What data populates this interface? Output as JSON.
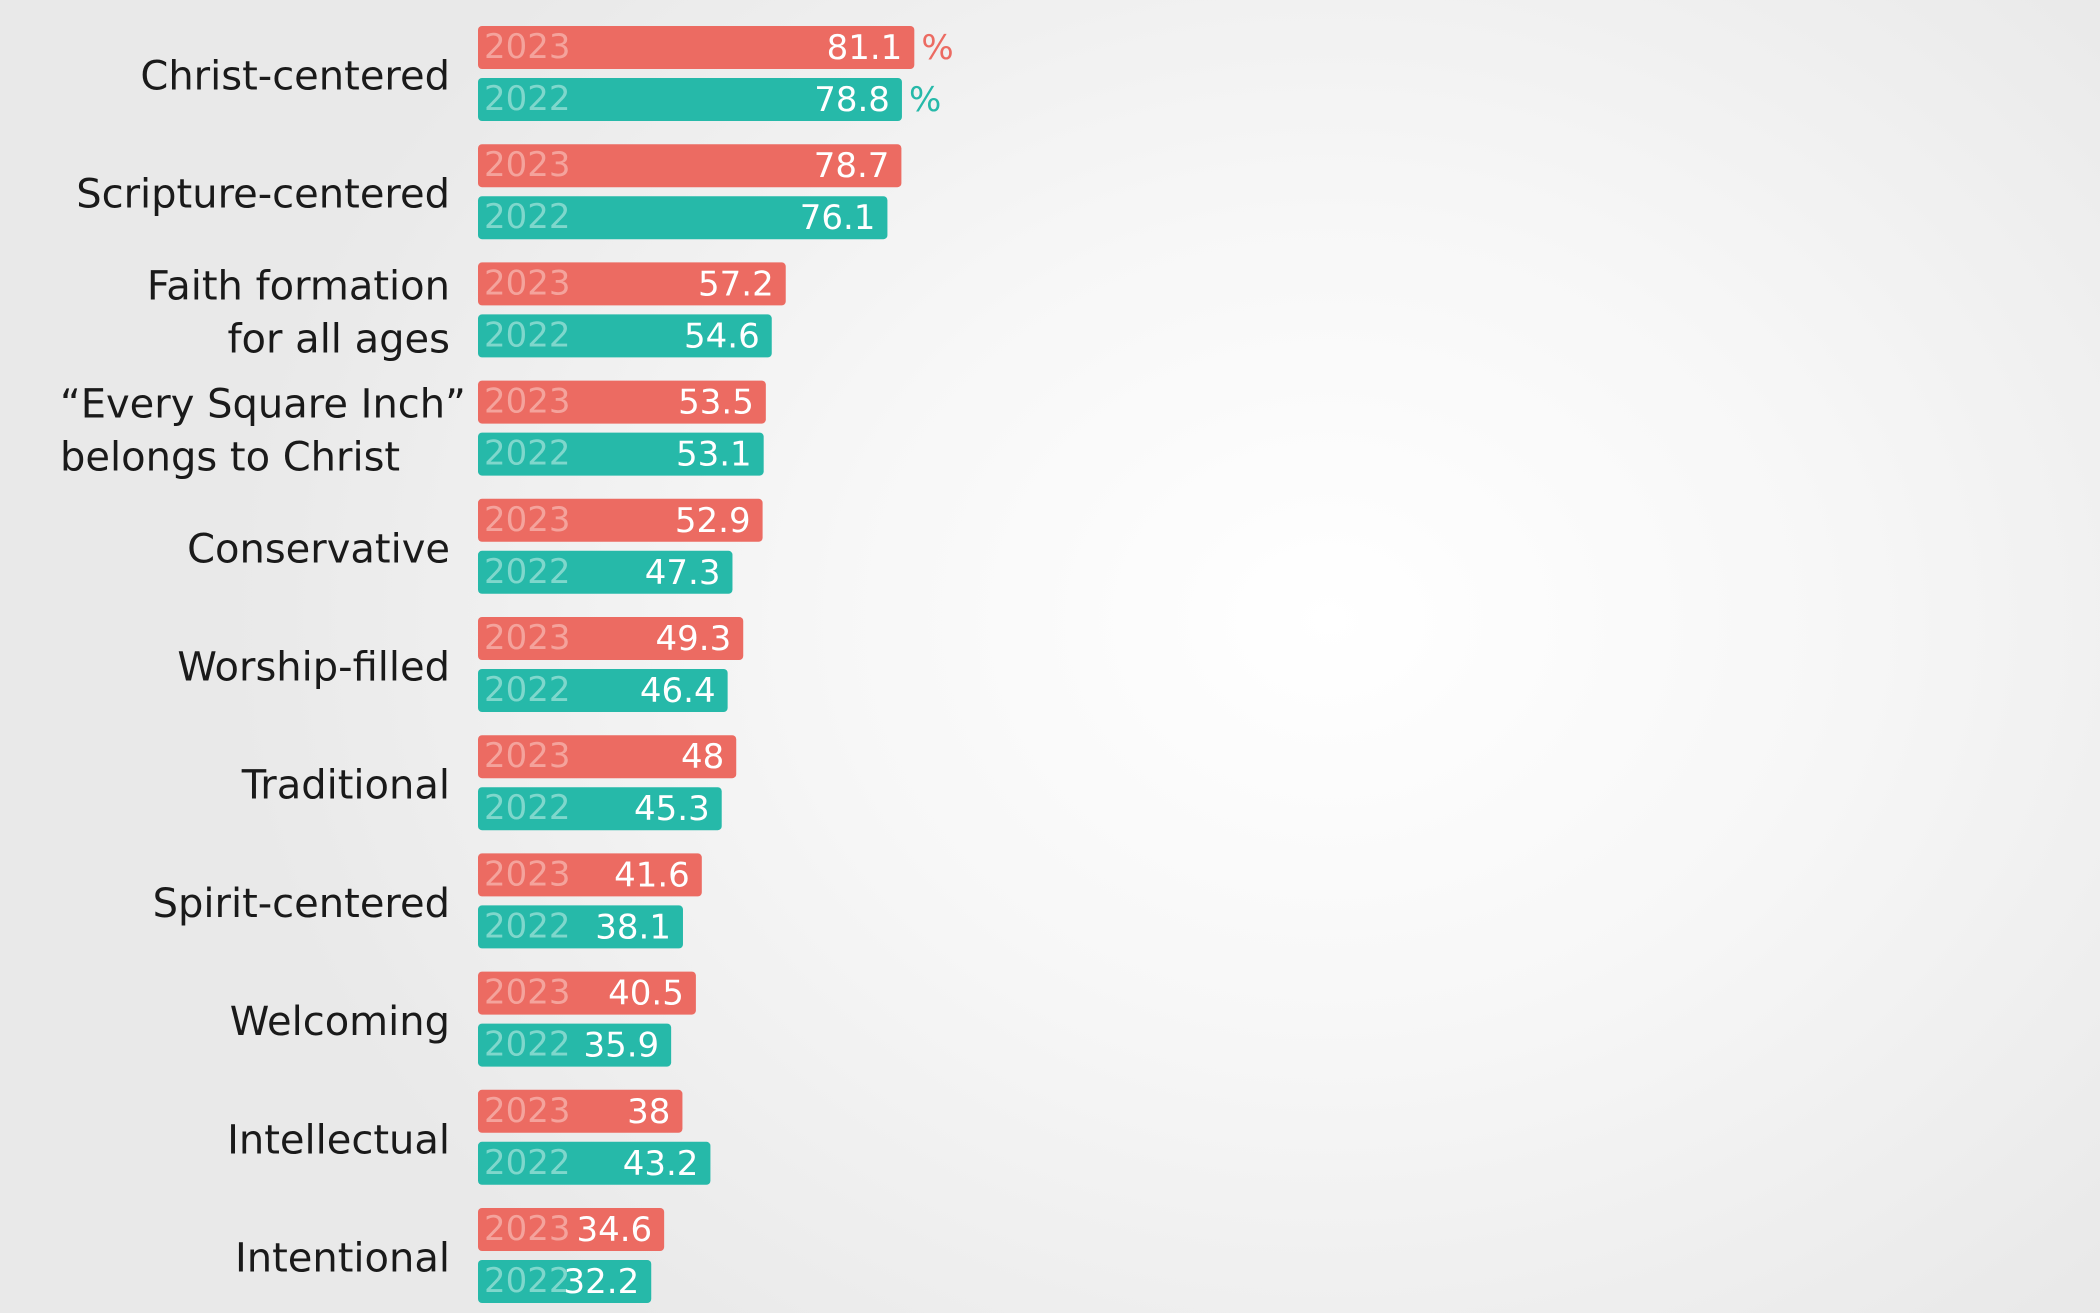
{
  "chart_data": {
    "type": "bar",
    "orientation": "horizontal",
    "unit": "%",
    "categories": [
      [
        "Christ-centered"
      ],
      [
        "Scripture-centered"
      ],
      [
        "Faith formation",
        "for all ages"
      ],
      [
        "“Every Square Inch”",
        "belongs to Christ"
      ],
      [
        "Conservative"
      ],
      [
        "Worship-filled"
      ],
      [
        "Traditional"
      ],
      [
        "Spirit-centered"
      ],
      [
        "Welcoming"
      ],
      [
        "Intellectual"
      ],
      [
        "Intentional"
      ]
    ],
    "series": [
      {
        "name": "2023",
        "color": "#ec6b62",
        "label_color": "#f4a39c",
        "values": [
          81.1,
          78.7,
          57.2,
          53.5,
          52.9,
          49.3,
          48,
          41.6,
          40.5,
          38,
          34.6
        ]
      },
      {
        "name": "2022",
        "color": "#26b9a9",
        "label_color": "#7fd7cc",
        "values": [
          78.8,
          76.1,
          54.6,
          53.1,
          47.3,
          46.4,
          45.3,
          38.1,
          35.9,
          43.2,
          32.2
        ]
      }
    ],
    "legend": "series names printed inside each bar",
    "grid": false
  }
}
